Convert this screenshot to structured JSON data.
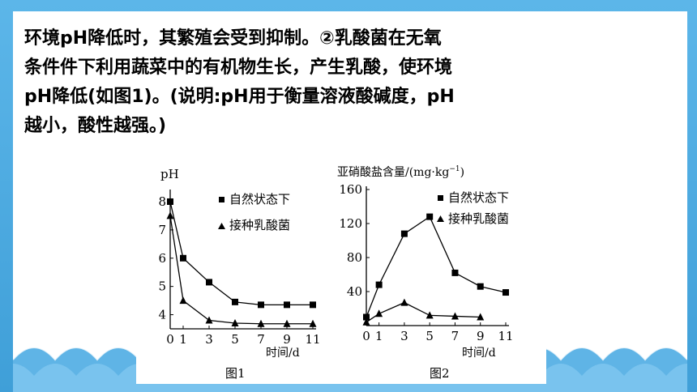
{
  "paragraph": {
    "lines": [
      "环境pH降低时，其繁殖会受到抑制。②乳酸菌在无氧",
      "条件件下利用蔬菜中的有机物生长，产生乳酸，使环境",
      "pH降低(如图1)。(说明:pH用于衡量溶液酸碱度，pH",
      "越小，酸性越强。)"
    ]
  },
  "figure1": {
    "caption": "图1",
    "ylabel": "pH",
    "xlabel": "时间/d",
    "x_ticks": [
      "0",
      "1",
      "3",
      "5",
      "7",
      "9",
      "11"
    ],
    "y_ticks": [
      "4",
      "5",
      "6",
      "7",
      "8"
    ],
    "legend": [
      "自然状态下",
      "接种乳酸菌"
    ]
  },
  "figure2": {
    "caption": "图2",
    "ylabel": "亚硝酸盐含量/(mg·kg",
    "ylabel_sup": "−1",
    "ylabel_close": ")",
    "xlabel": "时间/d",
    "x_ticks": [
      "0",
      "1",
      "3",
      "5",
      "7",
      "9",
      "11"
    ],
    "y_ticks": [
      "40",
      "80",
      "120",
      "160"
    ],
    "legend": [
      "自然状态下",
      "接种乳酸菌"
    ]
  },
  "chart_data": [
    {
      "type": "line",
      "title": "",
      "caption": "图1",
      "xlabel": "时间/d",
      "ylabel": "pH",
      "x": [
        0,
        1,
        3,
        5,
        7,
        9,
        11
      ],
      "xlim": [
        0,
        11
      ],
      "ylim": [
        3.5,
        8.2
      ],
      "series": [
        {
          "name": "自然状态下",
          "marker": "square",
          "values": [
            8.0,
            6.0,
            5.15,
            4.45,
            4.35,
            4.35,
            4.35
          ]
        },
        {
          "name": "接种乳酸菌",
          "marker": "triangle",
          "values": [
            7.5,
            4.5,
            3.8,
            3.7,
            3.68,
            3.68,
            3.68
          ]
        }
      ],
      "legend_position": "top-right",
      "grid": false
    },
    {
      "type": "line",
      "title": "",
      "caption": "图2",
      "xlabel": "时间/d",
      "ylabel": "亚硝酸盐含量/(mg·kg⁻¹)",
      "ylim": [
        0,
        160
      ],
      "xlim": [
        0,
        11
      ],
      "series": [
        {
          "name": "自然状态下",
          "marker": "square",
          "x": [
            0,
            1,
            3,
            5,
            7,
            9,
            11
          ],
          "values": [
            10,
            48,
            108,
            128,
            62,
            46,
            39
          ]
        },
        {
          "name": "接种乳酸菌",
          "marker": "triangle",
          "x": [
            0,
            1,
            3,
            5,
            7,
            9
          ],
          "values": [
            4,
            14,
            27,
            12,
            11,
            10
          ]
        }
      ],
      "legend_position": "top-right",
      "grid": false
    }
  ]
}
